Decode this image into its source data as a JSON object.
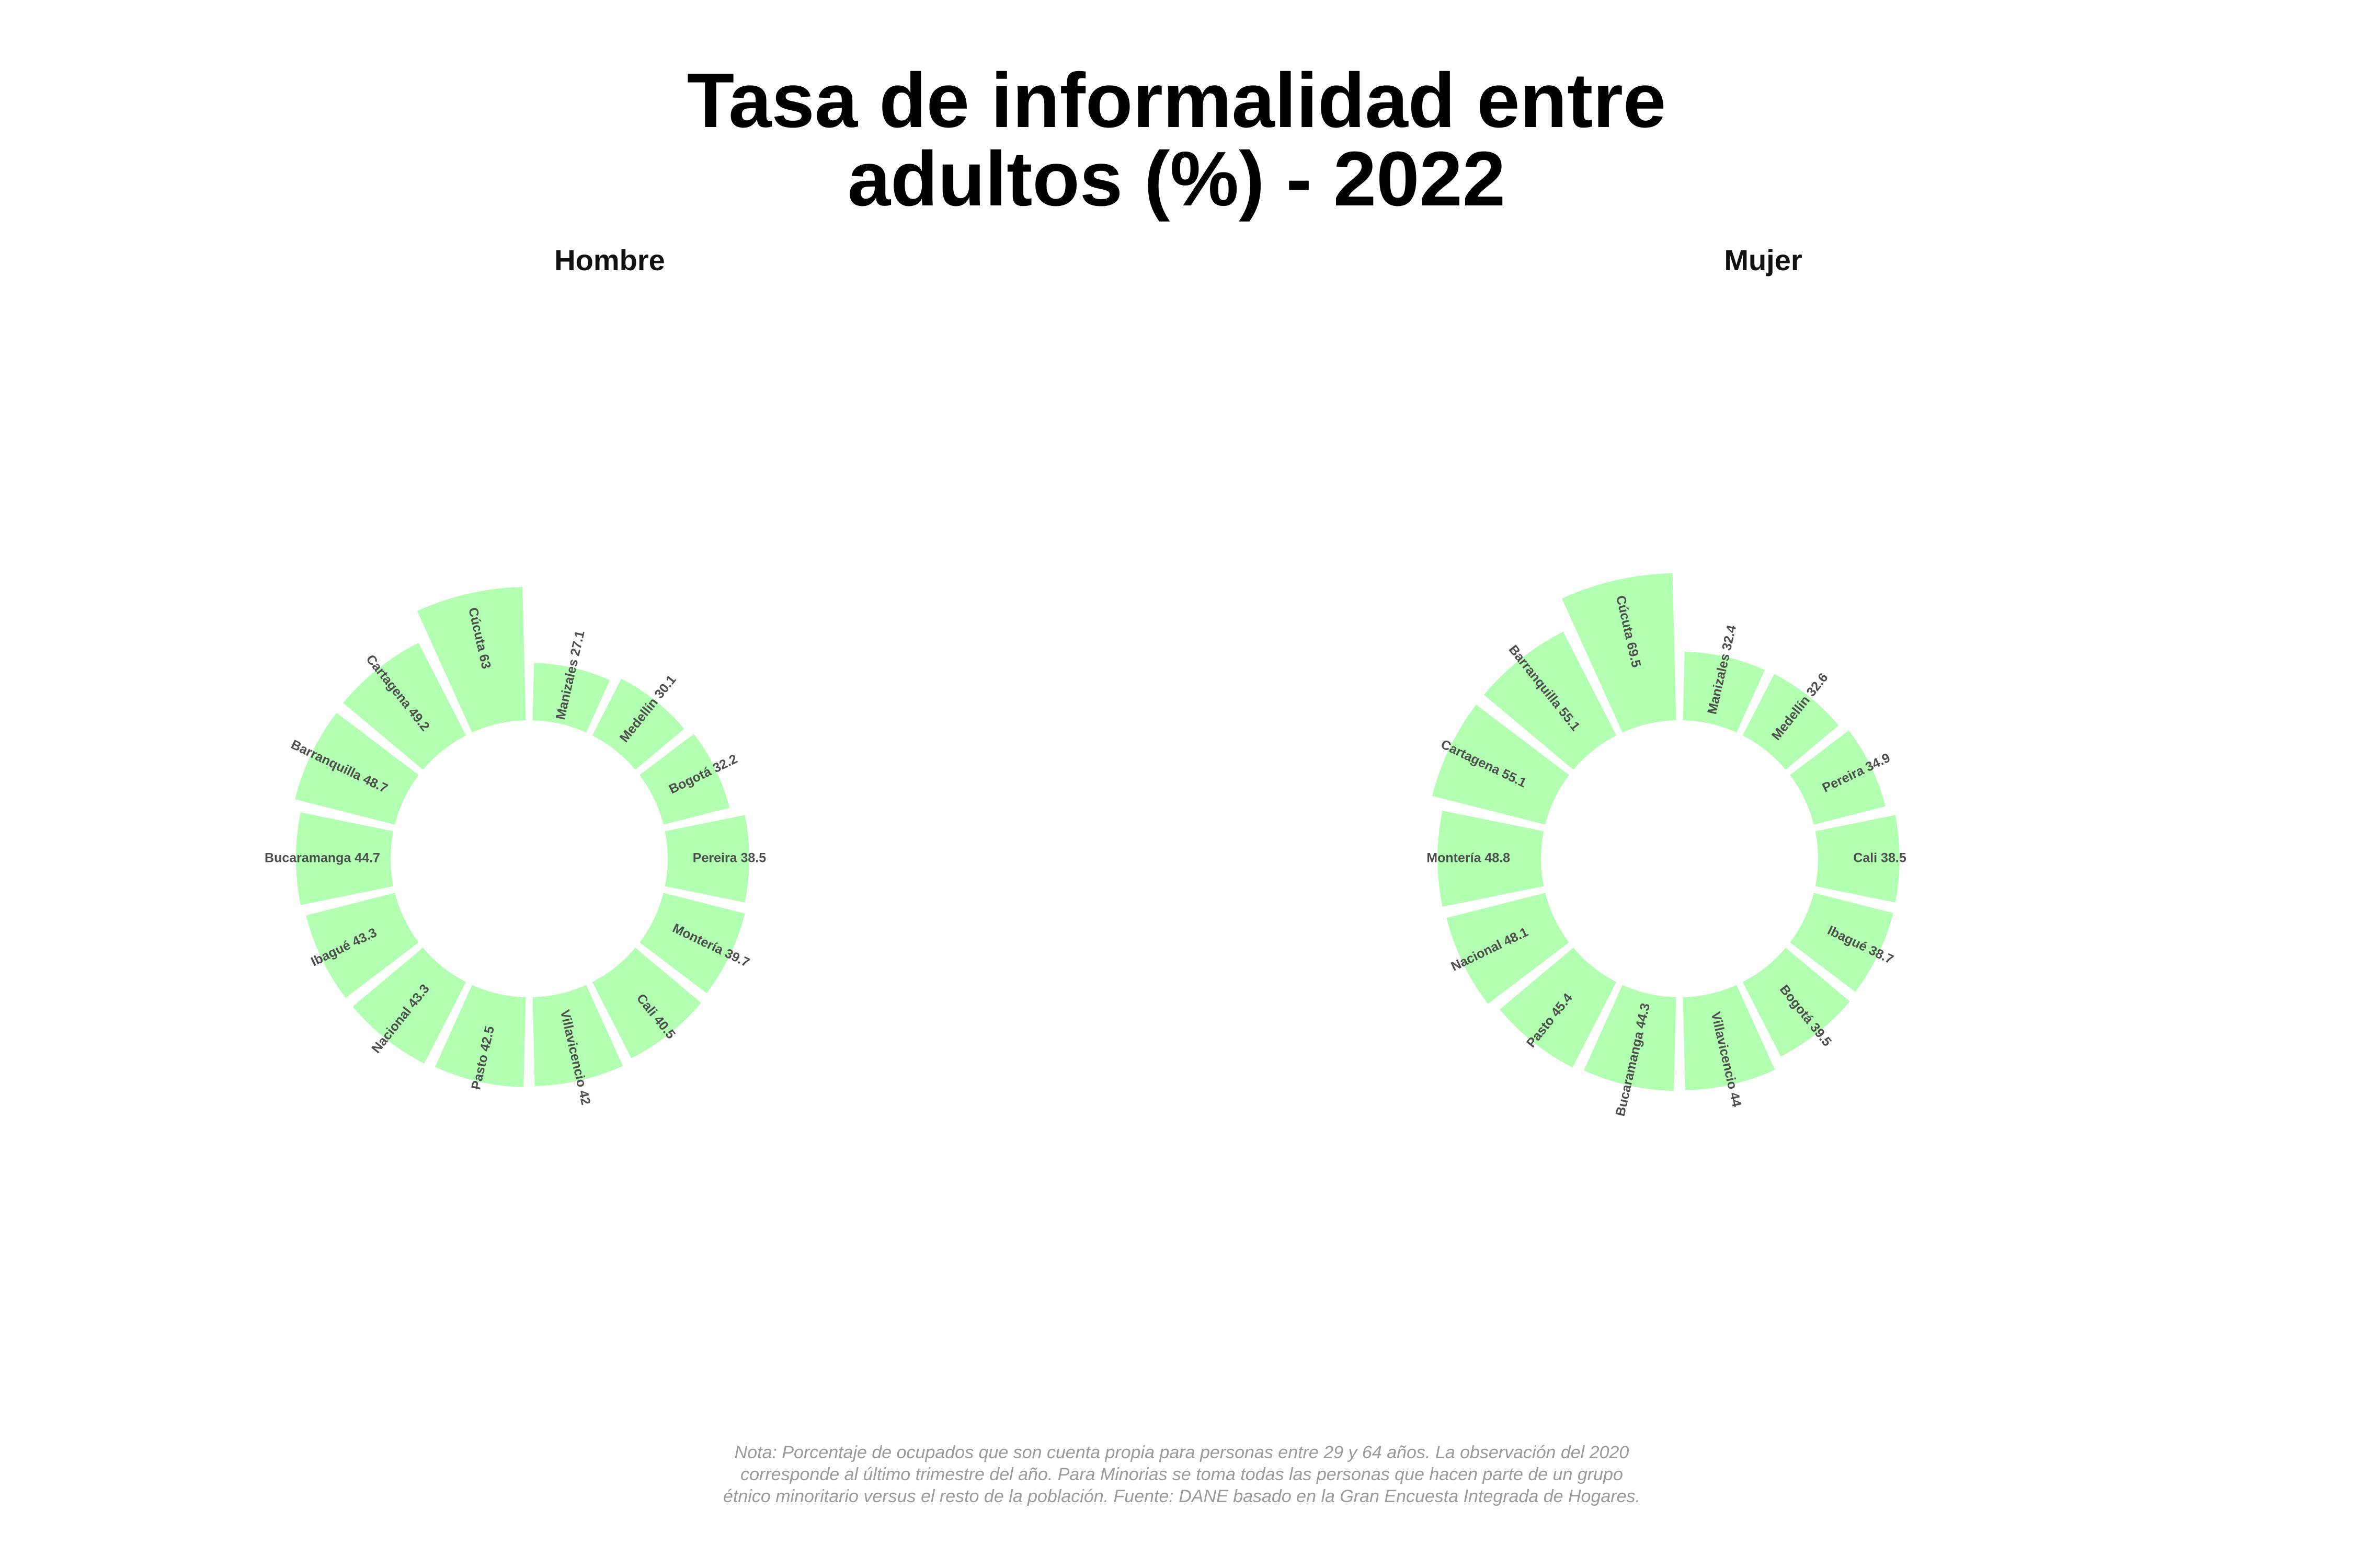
{
  "title": "Tasa de informalidad entre\nadultos (%) - 2022",
  "note": "Nota: Porcentaje de ocupados que son cuenta propia para personas entre 29 y 64 años. La observación del 2020 corresponde al último trimestre del año. Para Minorias se toma todas las personas que hacen parte de un grupo étnico minoritario versus el resto de la población. Fuente: DANE basado en la Gran Encuesta Integrada de Hogares.",
  "colors": {
    "bar": "#b2ffb2",
    "label": "#4d4d4d",
    "note": "#9a9a9a"
  },
  "chart_data": [
    {
      "type": "bar",
      "coord": "polar",
      "facet": "Hombre",
      "categories": [
        "Manizales",
        "Medellín",
        "Bogotá",
        "Pereira",
        "Montería",
        "Cali",
        "Villavicencio",
        "Pasto",
        "Nacional",
        "Ibagué",
        "Bucaramanga",
        "Barranquilla",
        "Cartagena",
        "Cúcuta"
      ],
      "values": [
        27.1,
        30.1,
        32.2,
        38.5,
        39.7,
        40.5,
        42,
        42.5,
        43.3,
        43.3,
        44.7,
        48.7,
        49.2,
        63
      ],
      "labels": [
        "Manizales 27.1",
        "Medellín 30.1",
        "Bogotá 32.2",
        "Pereira 38.5",
        "Montería 39.7",
        "Cali 40.5",
        "Villavicencio 42",
        "Pasto 42.5",
        "Nacional 43.3",
        "Ibagué 43.3",
        "Bucaramanga 44.7",
        "Barranquilla 48.7",
        "Cartagena 49.2",
        "Cúcuta 63"
      ]
    },
    {
      "type": "bar",
      "coord": "polar",
      "facet": "Mujer",
      "categories": [
        "Manizales",
        "Medellín",
        "Pereira",
        "Cali",
        "Ibagué",
        "Bogotá",
        "Villavicencio",
        "Bucaramanga",
        "Pasto",
        "Nacional",
        "Montería",
        "Cartagena",
        "Barranquilla",
        "Cúcuta"
      ],
      "values": [
        32.4,
        32.6,
        34.9,
        38.5,
        38.7,
        39.5,
        44,
        44.3,
        45.4,
        48.1,
        48.8,
        55.1,
        55.1,
        69.5
      ],
      "labels": [
        "Manizales 32.4",
        "Medellín 32.6",
        "Pereira 34.9",
        "Cali 38.5",
        "Ibagué 38.7",
        "Bogotá 39.5",
        "Villavicencio 44",
        "Bucaramanga 44.3",
        "Pasto 45.4",
        "Nacional 48.1",
        "Montería 48.8",
        "Cartagena 55.1",
        "Barranquilla 55.1",
        "Cúcuta 69.5"
      ]
    }
  ]
}
